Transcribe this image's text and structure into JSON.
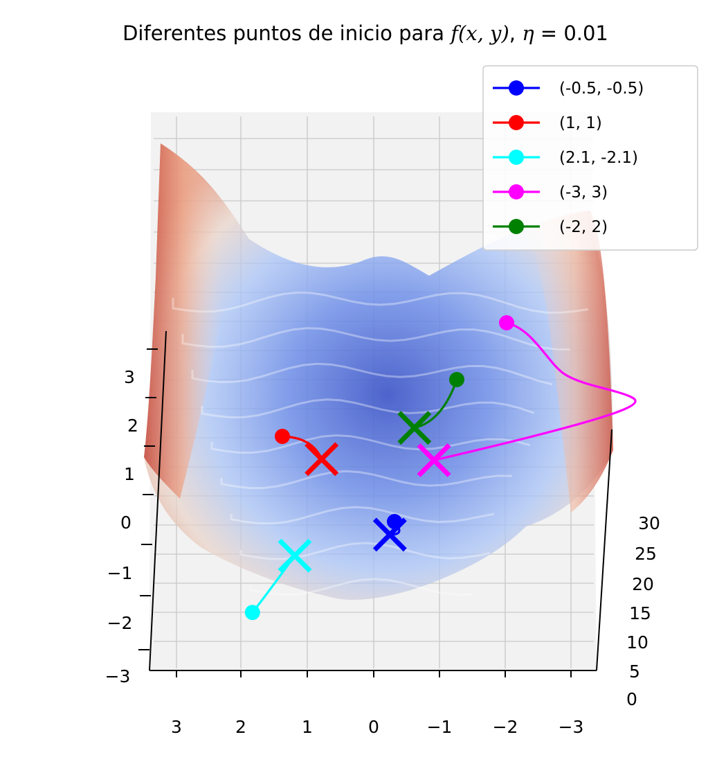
{
  "chart_data": {
    "type": "surface3d",
    "title": {
      "prefix": "Diferentes puntos de inicio para ",
      "f": "f",
      "args": "(x, y)",
      "sep": ", ",
      "eta": "η",
      "eq": " = 0.01"
    },
    "xlabel": "",
    "ylabel": "",
    "zlabel": "",
    "x_ticks": [
      "3",
      "2",
      "1",
      "0",
      "−1",
      "−2",
      "−3"
    ],
    "y_ticks": [
      "3",
      "2",
      "1",
      "0",
      "−1",
      "−2",
      "−3"
    ],
    "z_ticks": [
      "30",
      "25",
      "20",
      "15",
      "10",
      "5",
      "0"
    ],
    "xlim": [
      -3.4,
      3.4
    ],
    "ylim": [
      -3.4,
      3.4
    ],
    "zlim": [
      0,
      35
    ],
    "colormap": "coolwarm",
    "grid": true,
    "legend_position": "top-right",
    "series": [
      {
        "name": "(-0.5, -0.5)",
        "color": "#0000ff",
        "start": [
          -0.5,
          -0.5
        ],
        "end": [
          -0.38,
          -0.73
        ]
      },
      {
        "name": "(1, 1)",
        "color": "#ff0000",
        "start": [
          1.0,
          1.0
        ],
        "end": [
          0.45,
          0.6
        ]
      },
      {
        "name": "(2.1, -2.1)",
        "color": "#00ffff",
        "start": [
          2.1,
          -2.1
        ],
        "end": [
          1.22,
          -1.1
        ]
      },
      {
        "name": "(-3, 3)",
        "color": "#ff00ff",
        "start": [
          -3.0,
          3.0
        ],
        "end": [
          -1.35,
          0.58
        ]
      },
      {
        "name": "(-2, 2)",
        "color": "#008000",
        "start": [
          -2.0,
          2.0
        ],
        "end": [
          -1.15,
          1.15
        ]
      }
    ]
  }
}
